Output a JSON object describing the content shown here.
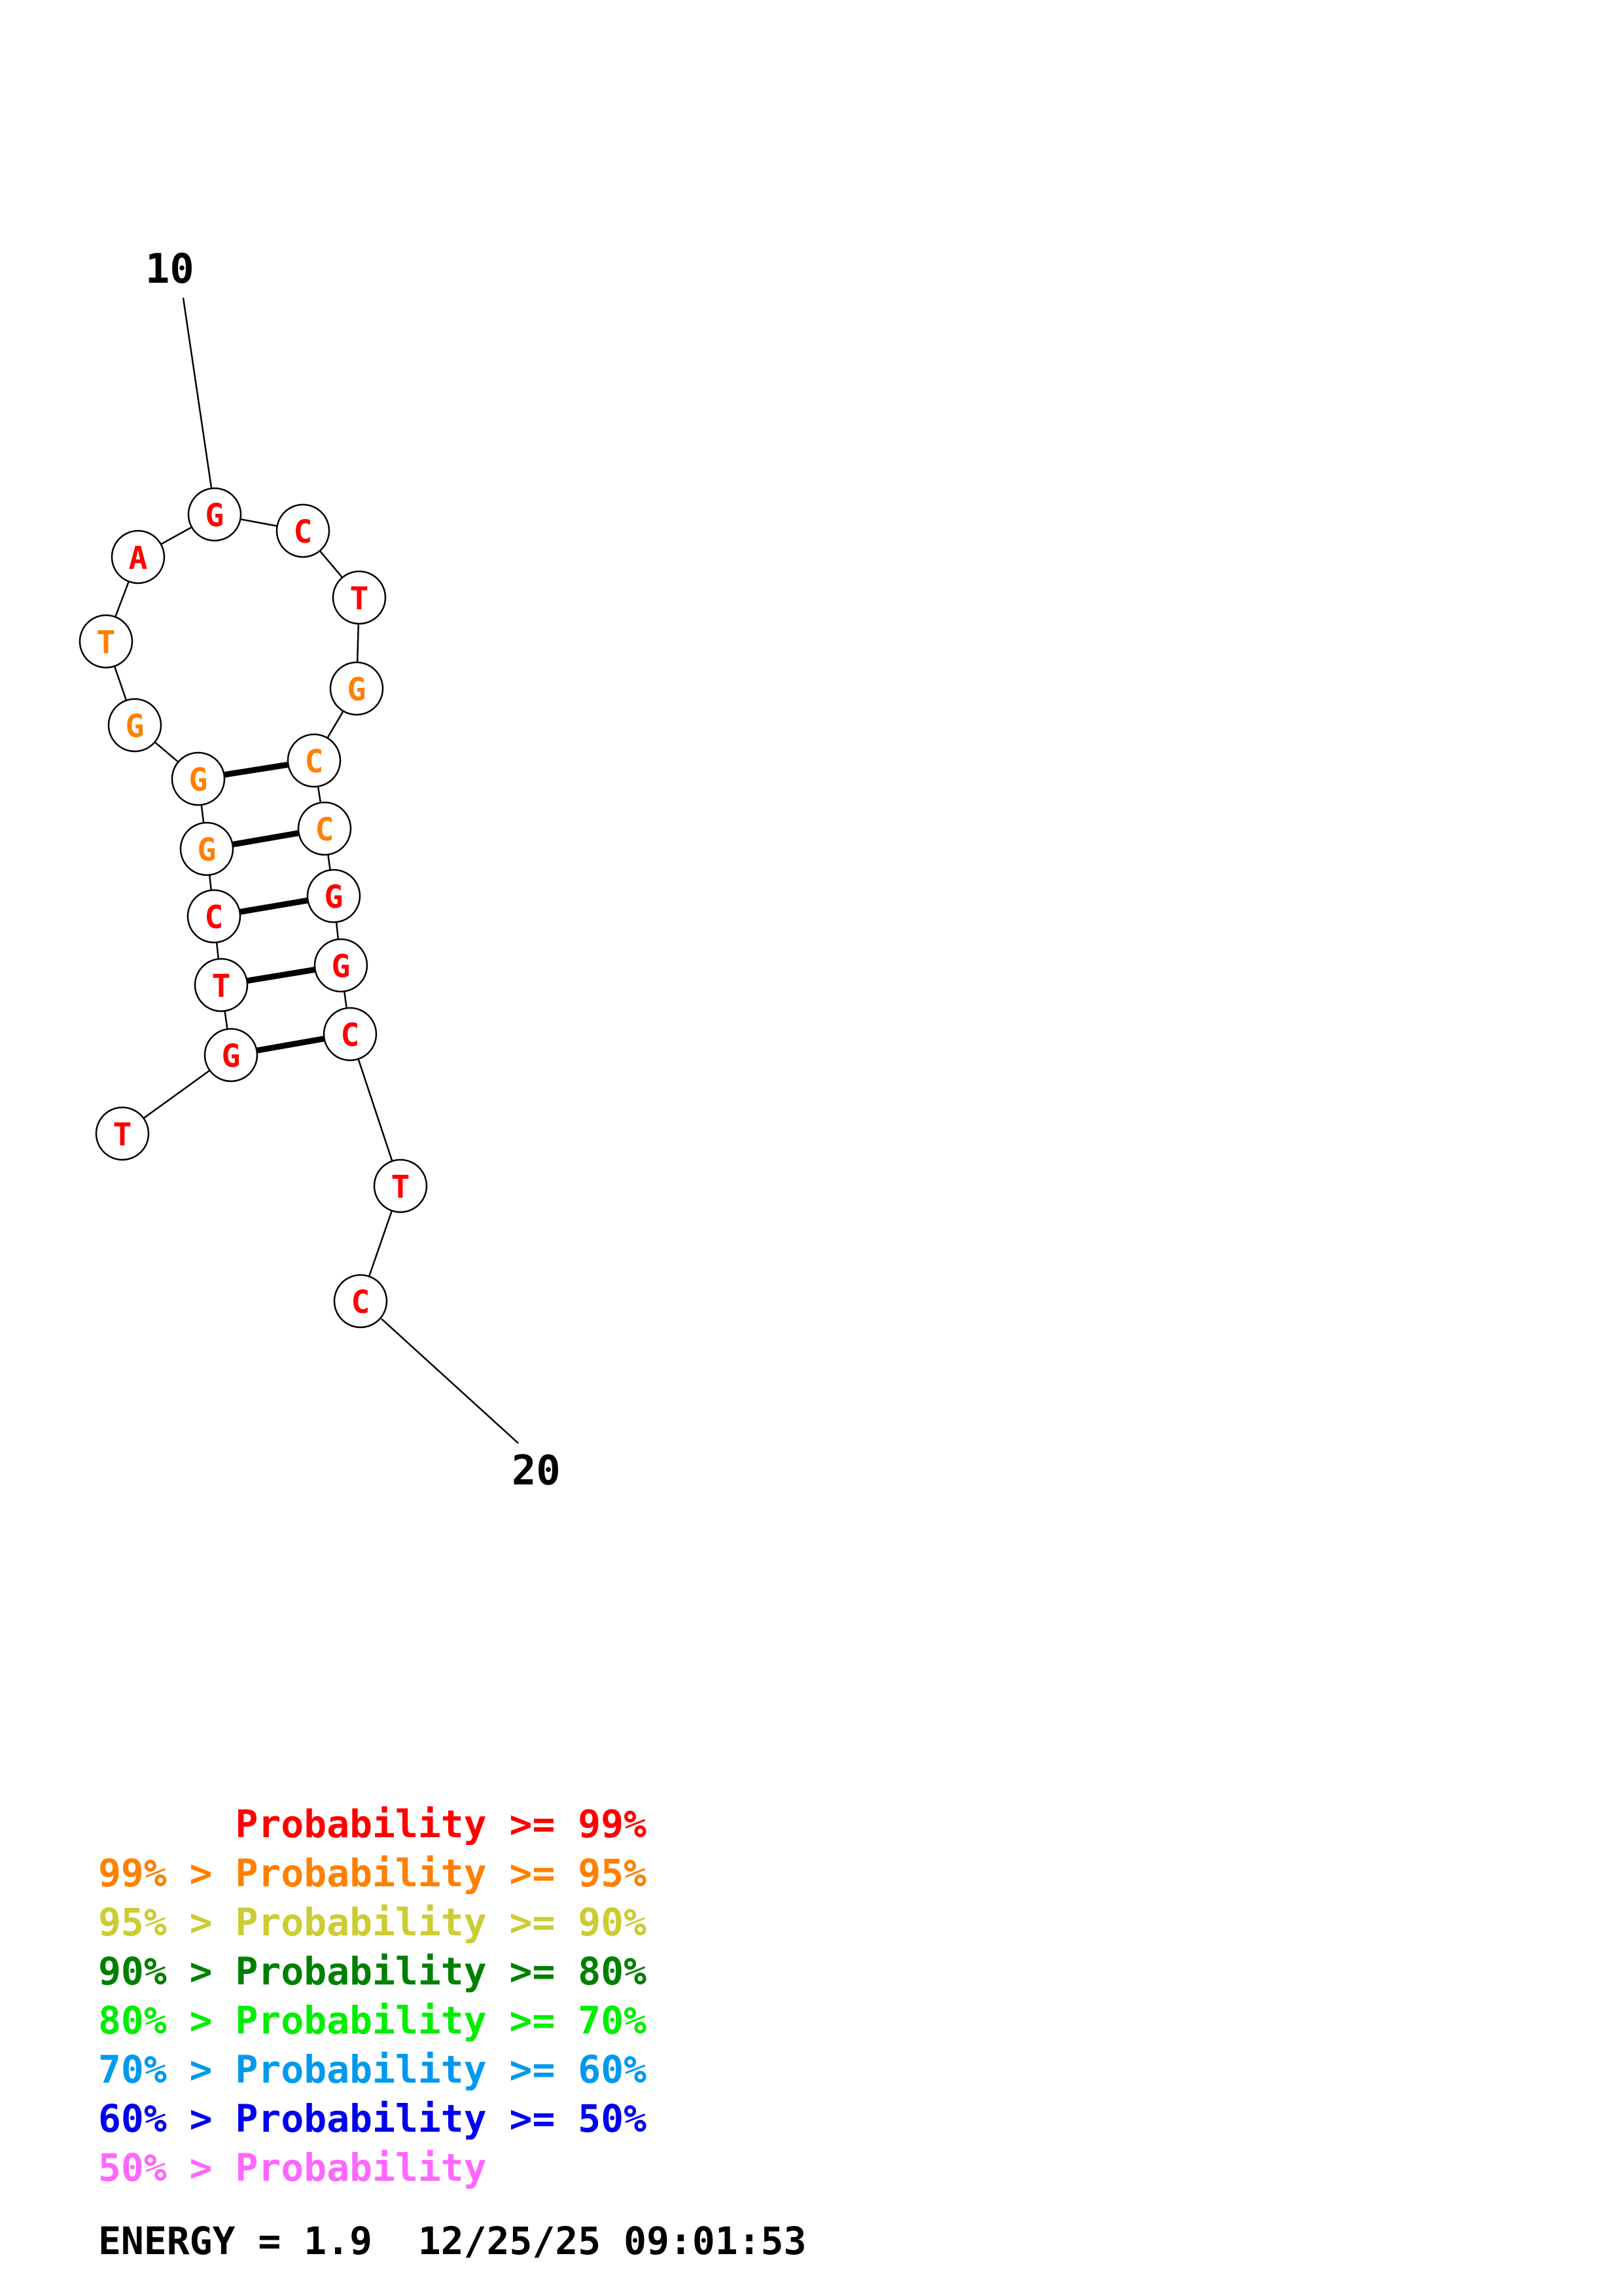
{
  "structure": {
    "nucleotides": [
      {
        "letter": "T",
        "color": "#ff0000"
      },
      {
        "letter": "G",
        "color": "#ff0000"
      },
      {
        "letter": "T",
        "color": "#ff0000"
      },
      {
        "letter": "C",
        "color": "#ff0000"
      },
      {
        "letter": "G",
        "color": "#ff8000"
      },
      {
        "letter": "G",
        "color": "#ff8000"
      },
      {
        "letter": "G",
        "color": "#ff8000"
      },
      {
        "letter": "T",
        "color": "#ff8000"
      },
      {
        "letter": "A",
        "color": "#ff0000"
      },
      {
        "letter": "G",
        "color": "#ff0000"
      },
      {
        "letter": "C",
        "color": "#ff0000"
      },
      {
        "letter": "T",
        "color": "#ff0000"
      },
      {
        "letter": "G",
        "color": "#ff8000"
      },
      {
        "letter": "C",
        "color": "#ff8000"
      },
      {
        "letter": "C",
        "color": "#ff8000"
      },
      {
        "letter": "G",
        "color": "#ff0000"
      },
      {
        "letter": "G",
        "color": "#ff0000"
      },
      {
        "letter": "C",
        "color": "#ff0000"
      },
      {
        "letter": "T",
        "color": "#ff0000"
      },
      {
        "letter": "C",
        "color": "#ff0000"
      }
    ],
    "pairs": [
      [
        2,
        18
      ],
      [
        3,
        17
      ],
      [
        4,
        16
      ],
      [
        5,
        15
      ],
      [
        6,
        14
      ]
    ],
    "position_labels": [
      {
        "text": "10",
        "index": 10
      },
      {
        "text": "20",
        "index": 20
      }
    ]
  },
  "legend": [
    {
      "prefix": "",
      "text": "Probability >= 99%",
      "color": "#ff0000"
    },
    {
      "prefix": "99% > ",
      "text": "Probability >= 95%",
      "color": "#ff8000"
    },
    {
      "prefix": "95% > ",
      "text": "Probability >= 90%",
      "color": "#cccc33"
    },
    {
      "prefix": "90% > ",
      "text": "Probability >= 80%",
      "color": "#008000"
    },
    {
      "prefix": "80% > ",
      "text": "Probability >= 70%",
      "color": "#00ee00"
    },
    {
      "prefix": "70% > ",
      "text": "Probability >= 60%",
      "color": "#0099ee"
    },
    {
      "prefix": "60% > ",
      "text": "Probability >= 50%",
      "color": "#0000ee"
    },
    {
      "prefix": "50% > ",
      "text": "Probability",
      "color": "#ff66ff"
    }
  ],
  "footer": {
    "energy": "ENERGY = 1.9",
    "timestamp": "12/25/25 09:01:53"
  }
}
